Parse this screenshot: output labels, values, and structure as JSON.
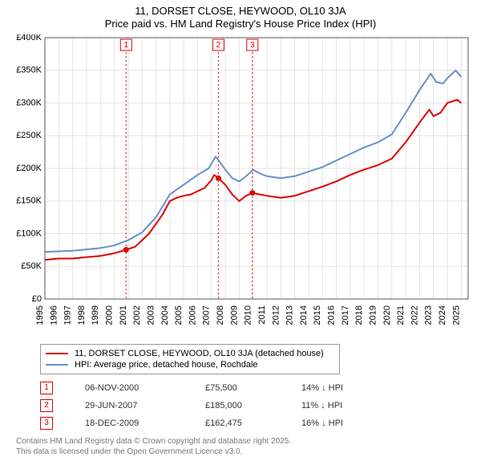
{
  "title_line1": "11, DORSET CLOSE, HEYWOOD, OL10 3JA",
  "title_line2": "Price paid vs. HM Land Registry's House Price Index (HPI)",
  "chart": {
    "type": "line",
    "background_color": "#ffffff",
    "plot_border_color": "#555555",
    "grid_color": "#e3e3e3",
    "axis_fontsize": 11,
    "x": {
      "min": 1995,
      "max": 2025.5,
      "ticks": [
        1995,
        1996,
        1997,
        1998,
        1999,
        2000,
        2001,
        2002,
        2003,
        2004,
        2005,
        2006,
        2007,
        2008,
        2009,
        2010,
        2011,
        2012,
        2013,
        2014,
        2015,
        2016,
        2017,
        2018,
        2019,
        2020,
        2021,
        2022,
        2023,
        2024,
        2025
      ]
    },
    "y": {
      "min": 0,
      "max": 400000,
      "tick_step": 50000,
      "tick_labels": [
        "£0",
        "£50K",
        "£100K",
        "£150K",
        "£200K",
        "£250K",
        "£300K",
        "£350K",
        "£400K"
      ]
    },
    "series": [
      {
        "id": "price_paid",
        "label": "11, DORSET CLOSE, HEYWOOD, OL10 3JA (detached house)",
        "color": "#e00000",
        "line_width": 2,
        "points": [
          [
            1995.0,
            60000
          ],
          [
            1996.0,
            62000
          ],
          [
            1997.0,
            62000
          ],
          [
            1998.0,
            64000
          ],
          [
            1999.0,
            66000
          ],
          [
            2000.0,
            70000
          ],
          [
            2000.85,
            75500
          ],
          [
            2001.5,
            80000
          ],
          [
            2002.0,
            90000
          ],
          [
            2002.5,
            100000
          ],
          [
            2003.0,
            115000
          ],
          [
            2003.5,
            130000
          ],
          [
            2004.0,
            150000
          ],
          [
            2004.5,
            155000
          ],
          [
            2005.0,
            158000
          ],
          [
            2005.5,
            160000
          ],
          [
            2006.0,
            165000
          ],
          [
            2006.5,
            170000
          ],
          [
            2007.0,
            182000
          ],
          [
            2007.2,
            190000
          ],
          [
            2007.5,
            185000
          ],
          [
            2008.0,
            175000
          ],
          [
            2008.5,
            160000
          ],
          [
            2009.0,
            150000
          ],
          [
            2009.5,
            158000
          ],
          [
            2009.95,
            162475
          ],
          [
            2010.5,
            160000
          ],
          [
            2011.0,
            158000
          ],
          [
            2012.0,
            155000
          ],
          [
            2013.0,
            158000
          ],
          [
            2014.0,
            165000
          ],
          [
            2015.0,
            172000
          ],
          [
            2016.0,
            180000
          ],
          [
            2017.0,
            190000
          ],
          [
            2018.0,
            198000
          ],
          [
            2019.0,
            205000
          ],
          [
            2020.0,
            215000
          ],
          [
            2021.0,
            240000
          ],
          [
            2022.0,
            270000
          ],
          [
            2022.7,
            290000
          ],
          [
            2023.0,
            280000
          ],
          [
            2023.5,
            285000
          ],
          [
            2024.0,
            300000
          ],
          [
            2024.7,
            305000
          ],
          [
            2025.0,
            300000
          ]
        ],
        "sale_points": [
          [
            2000.85,
            75500
          ],
          [
            2007.5,
            185000
          ],
          [
            2009.95,
            162475
          ]
        ]
      },
      {
        "id": "hpi",
        "label": "HPI: Average price, detached house, Rochdale",
        "color": "#6b8fc9",
        "line_width": 2,
        "points": [
          [
            1995.0,
            72000
          ],
          [
            1996.0,
            73000
          ],
          [
            1997.0,
            74000
          ],
          [
            1998.0,
            76000
          ],
          [
            1999.0,
            78000
          ],
          [
            2000.0,
            82000
          ],
          [
            2001.0,
            90000
          ],
          [
            2002.0,
            102000
          ],
          [
            2003.0,
            125000
          ],
          [
            2004.0,
            160000
          ],
          [
            2005.0,
            175000
          ],
          [
            2006.0,
            190000
          ],
          [
            2006.8,
            200000
          ],
          [
            2007.3,
            218000
          ],
          [
            2007.6,
            210000
          ],
          [
            2008.0,
            198000
          ],
          [
            2008.5,
            185000
          ],
          [
            2009.0,
            180000
          ],
          [
            2009.5,
            188000
          ],
          [
            2010.0,
            198000
          ],
          [
            2010.5,
            192000
          ],
          [
            2011.0,
            188000
          ],
          [
            2012.0,
            185000
          ],
          [
            2013.0,
            188000
          ],
          [
            2014.0,
            195000
          ],
          [
            2015.0,
            202000
          ],
          [
            2016.0,
            212000
          ],
          [
            2017.0,
            222000
          ],
          [
            2018.0,
            232000
          ],
          [
            2019.0,
            240000
          ],
          [
            2020.0,
            252000
          ],
          [
            2021.0,
            285000
          ],
          [
            2022.0,
            320000
          ],
          [
            2022.8,
            345000
          ],
          [
            2023.2,
            332000
          ],
          [
            2023.7,
            330000
          ],
          [
            2024.0,
            338000
          ],
          [
            2024.6,
            350000
          ],
          [
            2025.0,
            340000
          ]
        ]
      }
    ],
    "markers": [
      {
        "n": "1",
        "x": 2000.85,
        "color": "#e00000"
      },
      {
        "n": "2",
        "x": 2007.5,
        "color": "#e00000"
      },
      {
        "n": "3",
        "x": 2009.95,
        "color": "#e00000"
      }
    ]
  },
  "legend": {
    "border_color": "#999999",
    "items": [
      {
        "color": "#e00000",
        "label": "11, DORSET CLOSE, HEYWOOD, OL10 3JA (detached house)"
      },
      {
        "color": "#6b8fc9",
        "label": "HPI: Average price, detached house, Rochdale"
      }
    ]
  },
  "marker_rows": [
    {
      "n": "1",
      "color": "#e00000",
      "date": "06-NOV-2000",
      "price": "£75,500",
      "delta": "14% ↓ HPI"
    },
    {
      "n": "2",
      "color": "#e00000",
      "date": "29-JUN-2007",
      "price": "£185,000",
      "delta": "11% ↓ HPI"
    },
    {
      "n": "3",
      "color": "#e00000",
      "date": "18-DEC-2009",
      "price": "£162,475",
      "delta": "16% ↓ HPI"
    }
  ],
  "footer_line1": "Contains HM Land Registry data © Crown copyright and database right 2025.",
  "footer_line2": "This data is licensed under the Open Government Licence v3.0."
}
